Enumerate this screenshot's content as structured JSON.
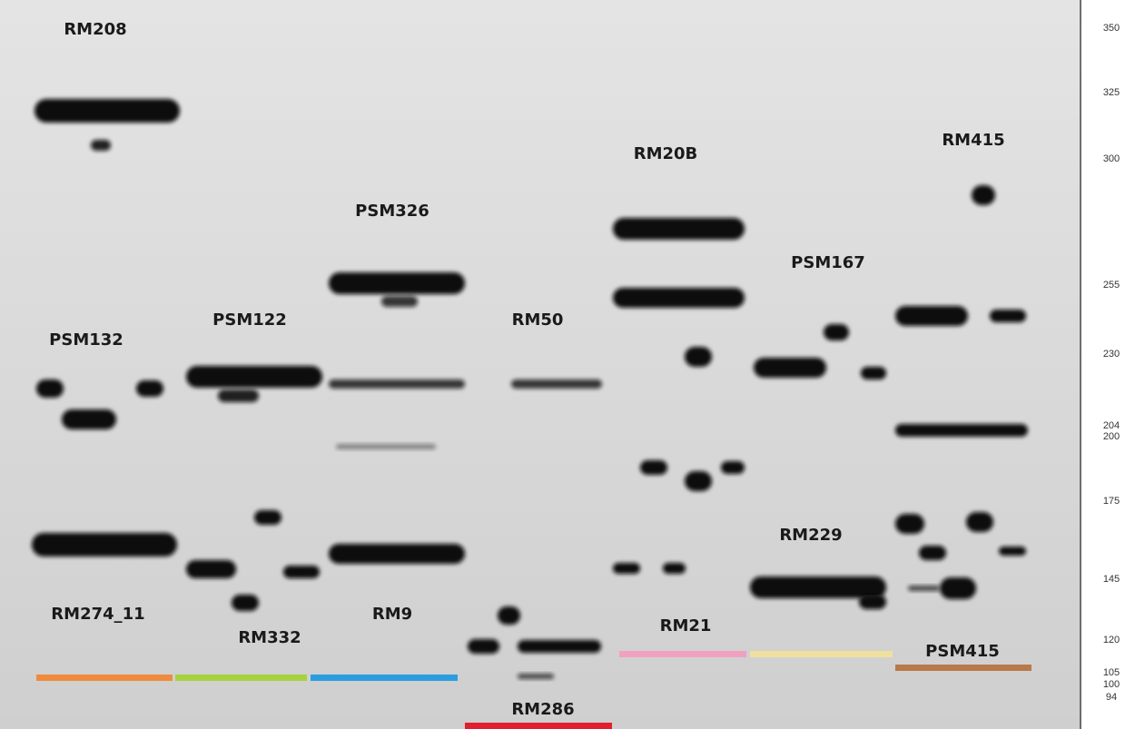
{
  "markers": [
    {
      "label": "RM208"
    },
    {
      "label": "PSM132"
    },
    {
      "label": "RM274_11"
    },
    {
      "label": "PSM122"
    },
    {
      "label": "RM332"
    },
    {
      "label": "PSM326"
    },
    {
      "label": "RM9"
    },
    {
      "label": "RM50"
    },
    {
      "label": "RM286"
    },
    {
      "label": "RM20B"
    },
    {
      "label": "RM21"
    },
    {
      "label": "PSM167"
    },
    {
      "label": "RM229"
    },
    {
      "label": "RM415"
    },
    {
      "label": "PSM415"
    }
  ],
  "size_scale": [
    350,
    325,
    300,
    255,
    230,
    204,
    200,
    175,
    145,
    120,
    105,
    100,
    94
  ]
}
